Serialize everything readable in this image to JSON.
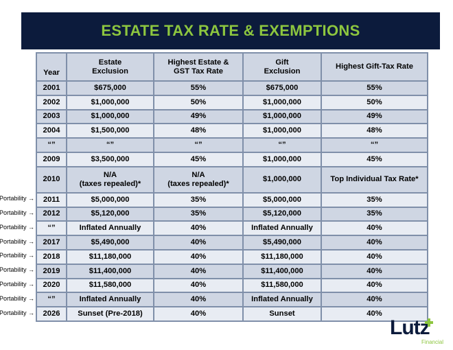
{
  "title": "ESTATE TAX RATE & EXEMPTIONS",
  "headers": {
    "year": "Year",
    "estate_exclusion": [
      "Estate",
      "Exclusion"
    ],
    "estate_rate": [
      "Highest Estate &",
      "GST Tax Rate"
    ],
    "gift_exclusion": [
      "Gift",
      "Exclusion"
    ],
    "gift_rate": "Highest Gift-Tax Rate"
  },
  "rows": [
    {
      "year": "2001",
      "estate_exclusion": "$675,000",
      "estate_rate": "55%",
      "gift_exclusion": "$675,000",
      "gift_rate": "55%",
      "note": ""
    },
    {
      "year": "2002",
      "estate_exclusion": "$1,000,000",
      "estate_rate": "50%",
      "gift_exclusion": "$1,000,000",
      "gift_rate": "50%",
      "note": ""
    },
    {
      "year": "2003",
      "estate_exclusion": "$1,000,000",
      "estate_rate": "49%",
      "gift_exclusion": "$1,000,000",
      "gift_rate": "49%",
      "note": ""
    },
    {
      "year": "2004",
      "estate_exclusion": "$1,500,000",
      "estate_rate": "48%",
      "gift_exclusion": "$1,000,000",
      "gift_rate": "48%",
      "note": ""
    },
    {
      "year": "“”",
      "estate_exclusion": "“”",
      "estate_rate": "“”",
      "gift_exclusion": "“”",
      "gift_rate": "“”",
      "note": ""
    },
    {
      "year": "2009",
      "estate_exclusion": "$3,500,000",
      "estate_rate": "45%",
      "gift_exclusion": "$1,000,000",
      "gift_rate": "45%",
      "note": ""
    },
    {
      "year": "2010",
      "estate_exclusion": [
        "N/A",
        "(taxes repealed)*"
      ],
      "estate_rate": [
        "N/A",
        "(taxes repealed)*"
      ],
      "gift_exclusion": "$1,000,000",
      "gift_rate": "Top Individual Tax Rate*",
      "note": ""
    },
    {
      "year": "2011",
      "estate_exclusion": "$5,000,000",
      "estate_rate": "35%",
      "gift_exclusion": "$5,000,000",
      "gift_rate": "35%",
      "note": "Portability →"
    },
    {
      "year": "2012",
      "estate_exclusion": "$5,120,000",
      "estate_rate": "35%",
      "gift_exclusion": "$5,120,000",
      "gift_rate": "35%",
      "note": "Portability →"
    },
    {
      "year": "“”",
      "estate_exclusion": "Inflated Annually",
      "estate_rate": "40%",
      "gift_exclusion": "Inflated Annually",
      "gift_rate": "40%",
      "note": "Portability →"
    },
    {
      "year": "2017",
      "estate_exclusion": "$5,490,000",
      "estate_rate": "40%",
      "gift_exclusion": "$5,490,000",
      "gift_rate": "40%",
      "note": "Portability →"
    },
    {
      "year": "2018",
      "estate_exclusion": "$11,180,000",
      "estate_rate": "40%",
      "gift_exclusion": "$11,180,000",
      "gift_rate": "40%",
      "note": "Portability →"
    },
    {
      "year": "2019",
      "estate_exclusion": "$11,400,000",
      "estate_rate": "40%",
      "gift_exclusion": "$11,400,000",
      "gift_rate": "40%",
      "note": "Portability →"
    },
    {
      "year": "2020",
      "estate_exclusion": "$11,580,000",
      "estate_rate": "40%",
      "gift_exclusion": "$11,580,000",
      "gift_rate": "40%",
      "note": "Portability →"
    },
    {
      "year": "“”",
      "estate_exclusion": "Inflated Annually",
      "estate_rate": "40%",
      "gift_exclusion": "Inflated Annually",
      "gift_rate": "40%",
      "note": "Portability →"
    },
    {
      "year": "2026",
      "estate_exclusion": "Sunset (Pre-2018)",
      "estate_rate": "40%",
      "gift_exclusion": "Sunset",
      "gift_rate": "40%",
      "note": "Portability →"
    }
  ],
  "logo": {
    "word": "Lutz",
    "sub": "Financial"
  },
  "colors": {
    "banner": "#0c1b3c",
    "title": "#8dc63f",
    "row_dark": "#cfd6e3",
    "row_light": "#e8ecf3",
    "border": "#7f8fa9"
  }
}
